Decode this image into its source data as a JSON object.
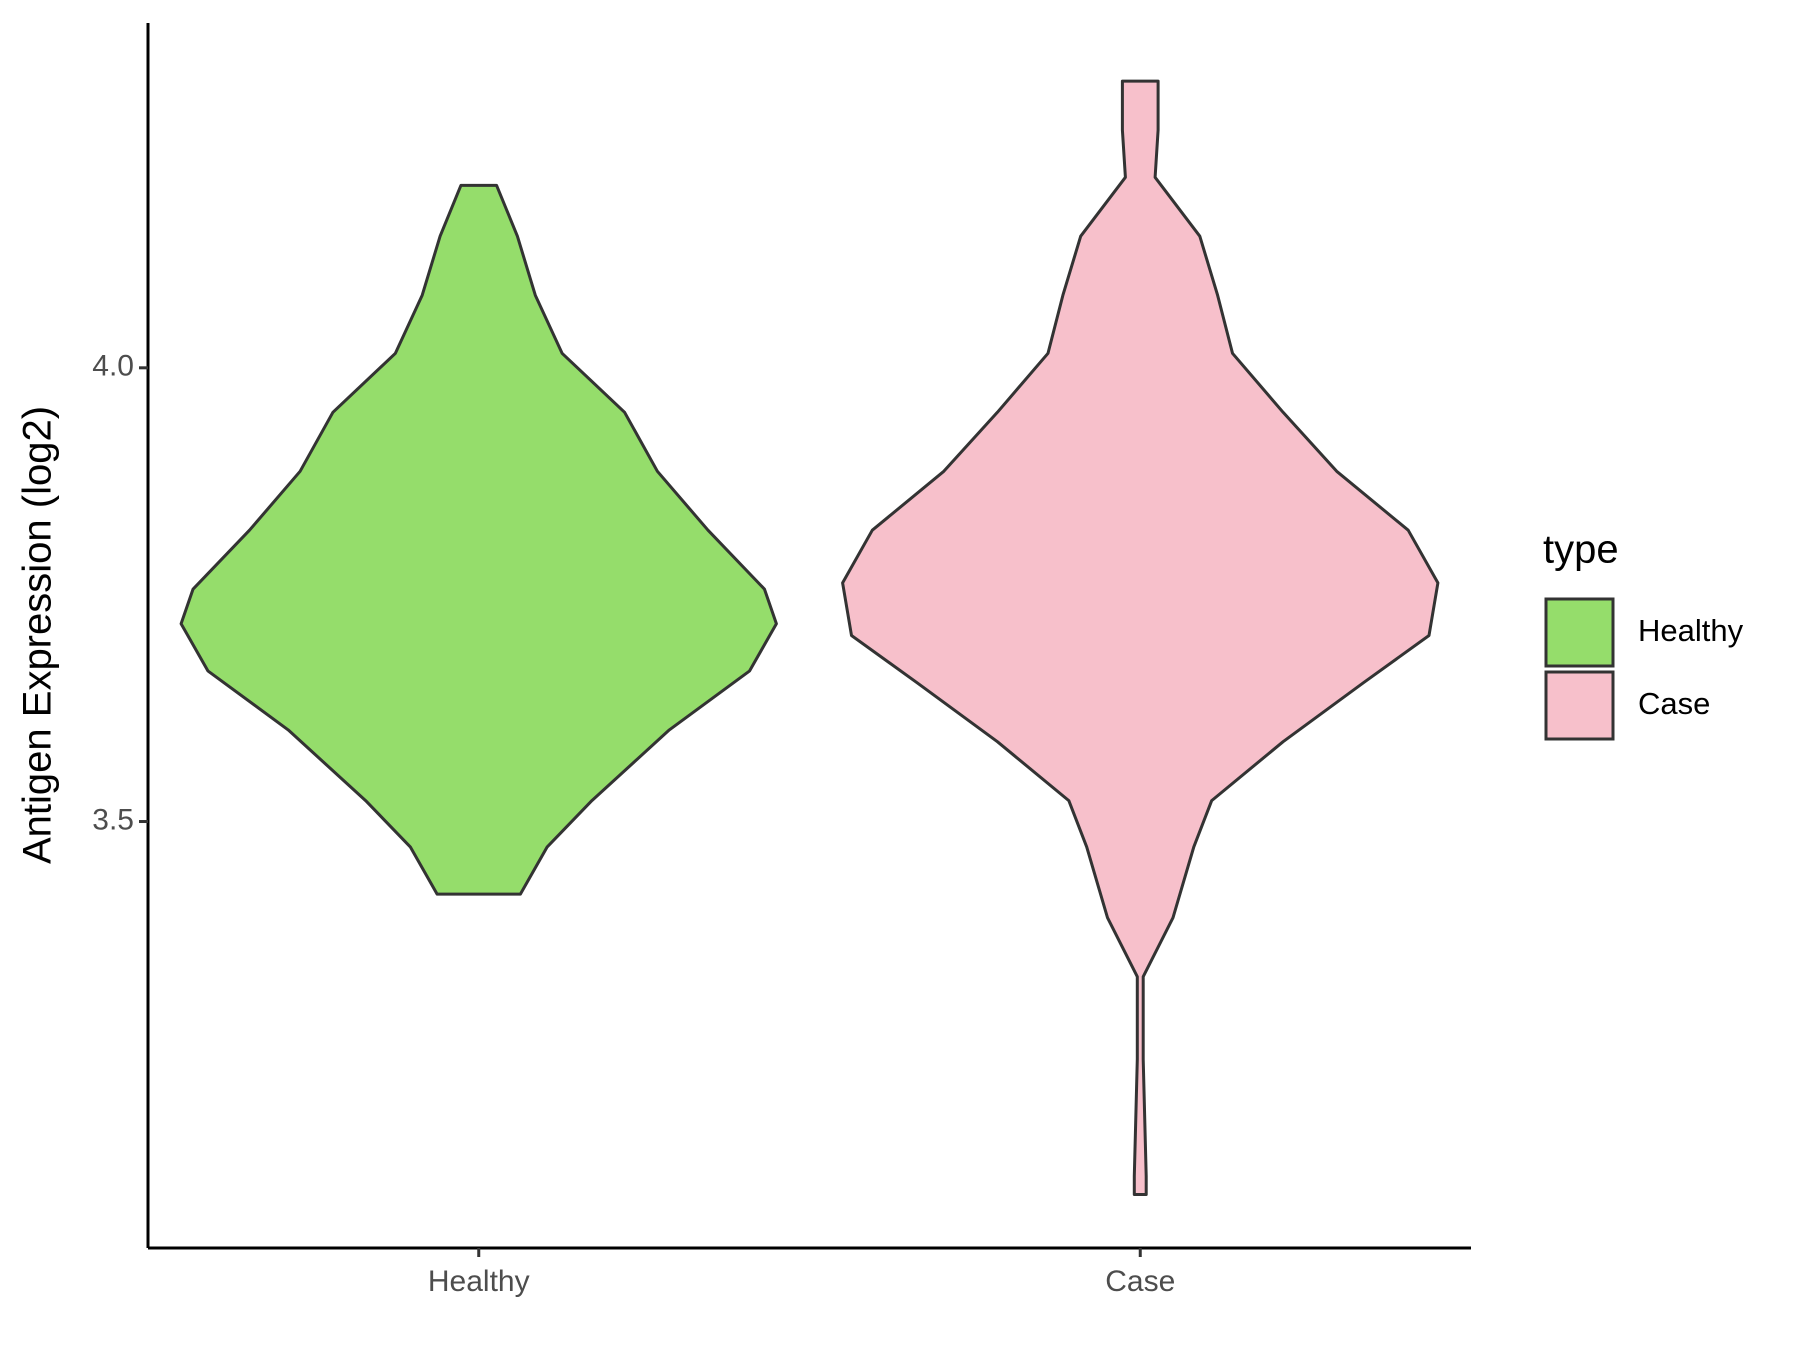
{
  "chart_data": {
    "type": "violin",
    "y_label": "Antigen Expression (log2)",
    "categories": [
      "Healthy",
      "Case"
    ],
    "legend_title": "type",
    "legend_position": "right",
    "ylim": [
      3.03,
      4.38
    ],
    "yticks": [
      {
        "value": 3.5,
        "label": "3.5"
      },
      {
        "value": 4.0,
        "label": "4.0"
      }
    ],
    "series": [
      {
        "name": "Healthy",
        "color": "#95dd6b",
        "y": [
          4.201,
          4.145,
          4.08,
          4.016,
          3.951,
          3.886,
          3.821,
          3.756,
          3.718,
          3.666,
          3.601,
          3.523,
          3.472,
          3.42
        ],
        "density": [
          0.06,
          0.13,
          0.19,
          0.28,
          0.49,
          0.6,
          0.77,
          0.96,
          1.0,
          0.91,
          0.64,
          0.38,
          0.23,
          0.14
        ]
      },
      {
        "name": "Case",
        "color": "#f7c0cb",
        "y": [
          4.316,
          4.262,
          4.21,
          4.145,
          4.08,
          4.016,
          3.951,
          3.886,
          3.821,
          3.763,
          3.705,
          3.653,
          3.588,
          3.523,
          3.472,
          3.394,
          3.329,
          3.238,
          3.109,
          3.089
        ],
        "density": [
          0.06,
          0.06,
          0.05,
          0.2,
          0.26,
          0.31,
          0.48,
          0.66,
          0.9,
          1.0,
          0.97,
          0.75,
          0.48,
          0.24,
          0.18,
          0.11,
          0.01,
          0.01,
          0.02,
          0.02
        ]
      }
    ]
  }
}
